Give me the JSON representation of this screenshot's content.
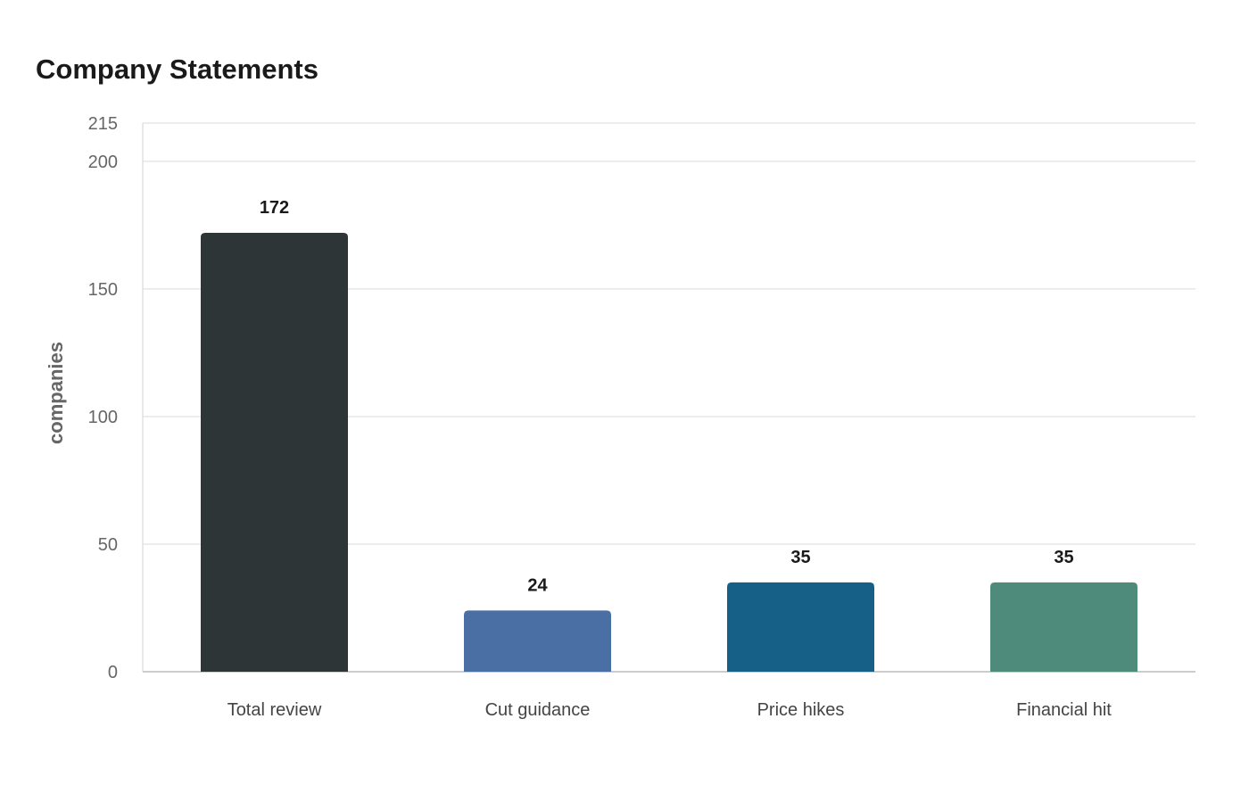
{
  "chart_data": {
    "type": "bar",
    "title": "Company Statements",
    "xlabel": "",
    "ylabel": "companies",
    "categories": [
      "Total review",
      "Cut guidance",
      "Price hikes",
      "Financial hit"
    ],
    "values": [
      172,
      24,
      35,
      35
    ],
    "data_labels": [
      "172",
      "24",
      "35",
      "35"
    ],
    "colors": [
      "#2e3537",
      "#4a6fa5",
      "#166088",
      "#4f8b7a"
    ],
    "ylim": [
      0,
      215
    ],
    "yticks": [
      0,
      50,
      100,
      150,
      200,
      215
    ],
    "grid": true,
    "legend": "none"
  }
}
